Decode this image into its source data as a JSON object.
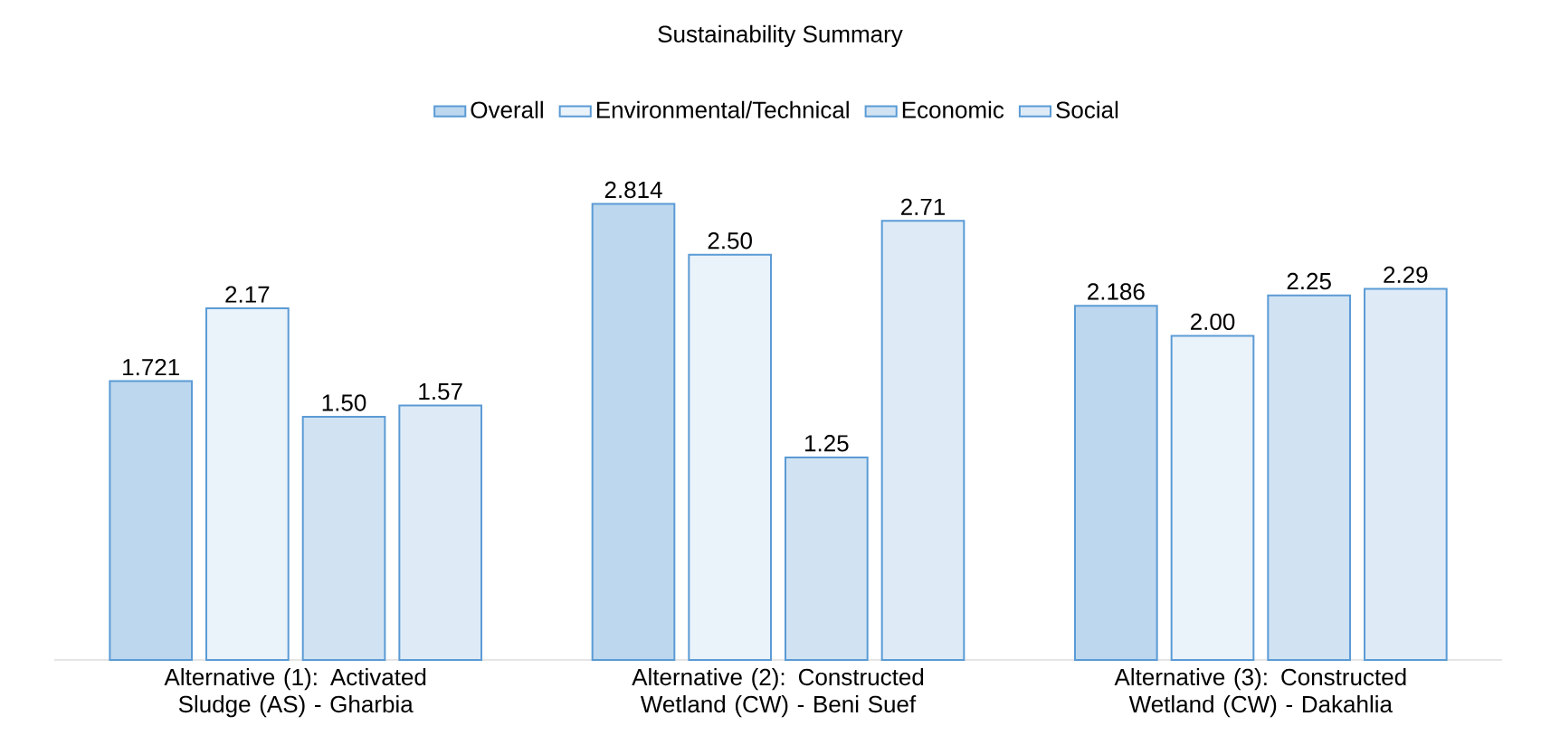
{
  "chart_data": {
    "type": "bar",
    "title": "Sustainability Summary",
    "categories": [
      "Alternative (1): Activated Sludge (AS) - Gharbia",
      "Alternative (2): Constructed Wetland (CW) - Beni Suef",
      "Alternative (3): Constructed Wetland (CW) - Dakahlia"
    ],
    "series": [
      {
        "name": "Overall",
        "color": "#5b9bd5",
        "values": [
          1.721,
          2.814,
          2.186
        ],
        "value_labels": [
          "1.721",
          "2.814",
          "2.186"
        ]
      },
      {
        "name": "Environmental/Technical",
        "color": "#5b9bd5",
        "values": [
          2.17,
          2.5,
          2.0
        ],
        "value_labels": [
          "2.17",
          "2.50",
          "2.00"
        ]
      },
      {
        "name": "Economic",
        "color": "#5b9bd5",
        "values": [
          1.5,
          1.25,
          2.25
        ],
        "value_labels": [
          "1.50",
          "1.25",
          "2.25"
        ]
      },
      {
        "name": "Social",
        "color": "#5b9bd5",
        "values": [
          1.57,
          2.71,
          2.29
        ],
        "value_labels": [
          "1.57",
          "2.71",
          "2.29"
        ]
      }
    ],
    "legend": "top"
  }
}
